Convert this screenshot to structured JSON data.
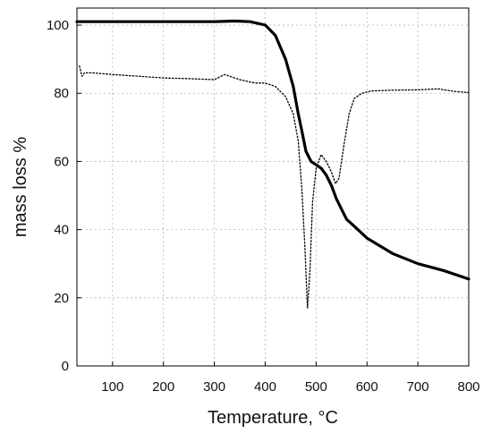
{
  "chart_data": {
    "type": "line",
    "title": "",
    "xlabel": "Temperature, °C",
    "ylabel": "mass loss %",
    "xlim": [
      30,
      800
    ],
    "ylim": [
      0,
      105
    ],
    "xticks": [
      100,
      200,
      300,
      400,
      500,
      600,
      700,
      800
    ],
    "yticks": [
      0,
      20,
      40,
      60,
      80,
      100
    ],
    "grid": true,
    "legend": "none",
    "series": [
      {
        "style": "solid",
        "color": "#000000",
        "x": [
          30,
          100,
          200,
          300,
          340,
          370,
          400,
          420,
          440,
          455,
          465,
          472,
          480,
          490,
          500,
          510,
          520,
          530,
          540,
          550,
          560,
          575,
          600,
          650,
          700,
          750,
          800
        ],
        "y": [
          101,
          101,
          101,
          101,
          101.2,
          101,
          100,
          97,
          90,
          82,
          74,
          69,
          63,
          60,
          59,
          58,
          56,
          53,
          49,
          46,
          43,
          41,
          37.5,
          33,
          30,
          28,
          25.5
        ]
      },
      {
        "style": "dotted",
        "color": "#000000",
        "x": [
          35,
          40,
          45,
          60,
          100,
          150,
          200,
          250,
          300,
          320,
          350,
          380,
          400,
          420,
          440,
          455,
          465,
          472,
          478,
          483,
          488,
          493,
          500,
          510,
          520,
          530,
          538,
          545,
          555,
          565,
          575,
          590,
          610,
          650,
          700,
          740,
          770,
          800
        ],
        "y": [
          88,
          85,
          86,
          86,
          85.5,
          85,
          84.5,
          84.3,
          84,
          85.5,
          84,
          83,
          83,
          82,
          79,
          74,
          66,
          52,
          35,
          17,
          28,
          48,
          58,
          62,
          60,
          57,
          53.5,
          55,
          65,
          74,
          78.5,
          80,
          80.7,
          80.9,
          81,
          81.3,
          80.6,
          80.2
        ]
      }
    ]
  }
}
